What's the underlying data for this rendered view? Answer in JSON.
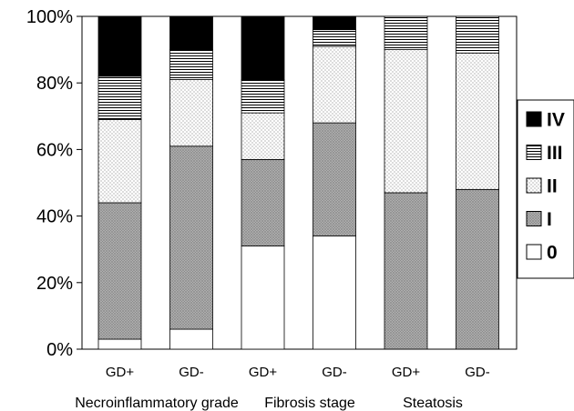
{
  "chart_data": {
    "type": "bar",
    "stacked": true,
    "categories": [
      "GD+",
      "GD-",
      "GD+",
      "GD-",
      "GD+",
      "GD-"
    ],
    "groups": [
      {
        "label": "Necroinflammatory grade",
        "span": [
          0,
          1
        ]
      },
      {
        "label": "Fibrosis stage",
        "span": [
          2,
          3
        ]
      },
      {
        "label": "Steatosis",
        "span": [
          4,
          5
        ]
      }
    ],
    "series": [
      {
        "name": "0",
        "pattern": "white",
        "values": [
          3,
          6,
          31,
          34,
          0,
          0
        ]
      },
      {
        "name": "I",
        "pattern": "crosshatch",
        "values": [
          41,
          55,
          26,
          34,
          47,
          48
        ]
      },
      {
        "name": "II",
        "pattern": "dots",
        "values": [
          25,
          20,
          14,
          23,
          43,
          41
        ]
      },
      {
        "name": "III",
        "pattern": "hlines",
        "values": [
          13,
          9,
          10,
          5,
          10,
          11
        ]
      },
      {
        "name": "IV",
        "pattern": "black",
        "values": [
          18,
          10,
          19,
          4,
          0,
          0
        ]
      }
    ],
    "y_ticks": [
      "0%",
      "20%",
      "40%",
      "60%",
      "80%",
      "100%"
    ],
    "ylim": [
      0,
      100
    ],
    "grid": false,
    "legend": {
      "placement": "right",
      "order": [
        "IV",
        "III",
        "II",
        "I",
        "0"
      ]
    },
    "title": "",
    "xlabel": "",
    "ylabel": ""
  }
}
